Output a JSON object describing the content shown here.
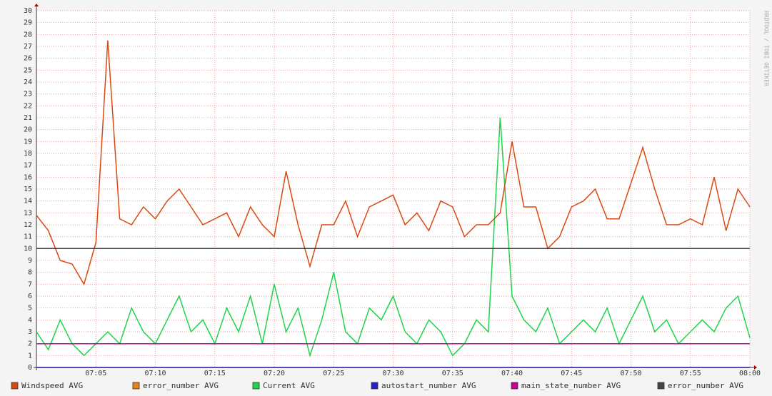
{
  "chart_data": {
    "type": "line",
    "watermark": "RRDTOOL / TOBI OETIKER",
    "x": [
      "07:00",
      "07:01",
      "07:02",
      "07:03",
      "07:04",
      "07:05",
      "07:06",
      "07:07",
      "07:08",
      "07:09",
      "07:10",
      "07:11",
      "07:12",
      "07:13",
      "07:14",
      "07:15",
      "07:16",
      "07:17",
      "07:18",
      "07:19",
      "07:20",
      "07:21",
      "07:22",
      "07:23",
      "07:24",
      "07:25",
      "07:26",
      "07:27",
      "07:28",
      "07:29",
      "07:30",
      "07:31",
      "07:32",
      "07:33",
      "07:34",
      "07:35",
      "07:36",
      "07:37",
      "07:38",
      "07:39",
      "07:40",
      "07:41",
      "07:42",
      "07:43",
      "07:44",
      "07:45",
      "07:46",
      "07:47",
      "07:48",
      "07:49",
      "07:50",
      "07:51",
      "07:52",
      "07:53",
      "07:54",
      "07:55",
      "07:56",
      "07:57",
      "07:58",
      "07:59",
      "08:00"
    ],
    "xlim": [
      "07:00",
      "08:00"
    ],
    "xticks": [
      "07:05",
      "07:10",
      "07:15",
      "07:20",
      "07:25",
      "07:30",
      "07:35",
      "07:40",
      "07:45",
      "07:50",
      "07:55",
      "08:00"
    ],
    "ylim": [
      0,
      30
    ],
    "yticks": [
      0,
      1,
      2,
      3,
      4,
      5,
      6,
      7,
      8,
      9,
      10,
      11,
      12,
      13,
      14,
      15,
      16,
      17,
      18,
      19,
      20,
      21,
      22,
      23,
      24,
      25,
      26,
      27,
      28,
      29,
      30
    ],
    "grid": true,
    "series": [
      {
        "name": "Windspeed AVG",
        "color": "#d84a12",
        "values": [
          12.8,
          11.5,
          9,
          8.7,
          7,
          10.5,
          27.5,
          12.5,
          12,
          13.5,
          12.5,
          14,
          15,
          13.5,
          12,
          12.5,
          13,
          11,
          13.5,
          12,
          11,
          16.5,
          12,
          8.5,
          12,
          12,
          14,
          11,
          13.5,
          14,
          14.5,
          12,
          13,
          11.5,
          14,
          13.5,
          11,
          12,
          12,
          13,
          19,
          13.5,
          13.5,
          10,
          11,
          13.5,
          14,
          15,
          12.5,
          12.5,
          15.5,
          18.5,
          15,
          12,
          12,
          12.5,
          12,
          16,
          11.5,
          15,
          13.5
        ]
      },
      {
        "name": "error_number AVG",
        "color": "#e8801a",
        "values": [
          0,
          0,
          0,
          0,
          0,
          0,
          0,
          0,
          0,
          0,
          0,
          0,
          0,
          0,
          0,
          0,
          0,
          0,
          0,
          0,
          0,
          0,
          0,
          0,
          0,
          0,
          0,
          0,
          0,
          0,
          0,
          0,
          0,
          0,
          0,
          0,
          0,
          0,
          0,
          0,
          0,
          0,
          0,
          0,
          0,
          0,
          0,
          0,
          0,
          0,
          0,
          0,
          0,
          0,
          0,
          0,
          0,
          0,
          0,
          0,
          0
        ]
      },
      {
        "name": "Current AVG",
        "color": "#1ed44a",
        "values": [
          3,
          1.5,
          4,
          2,
          1,
          2,
          3,
          2,
          5,
          3,
          2,
          4,
          6,
          3,
          4,
          2,
          5,
          3,
          6,
          2,
          7,
          3,
          5,
          1,
          4,
          8,
          3,
          2,
          5,
          4,
          6,
          3,
          2,
          4,
          3,
          1,
          2,
          4,
          3,
          21,
          6,
          4,
          3,
          5,
          2,
          3,
          4,
          3,
          5,
          2,
          4,
          6,
          3,
          4,
          2,
          3,
          4,
          3,
          5,
          6,
          2.5
        ]
      },
      {
        "name": "autostart_number AVG",
        "color": "#2222cc",
        "values": [
          0,
          0,
          0,
          0,
          0,
          0,
          0,
          0,
          0,
          0,
          0,
          0,
          0,
          0,
          0,
          0,
          0,
          0,
          0,
          0,
          0,
          0,
          0,
          0,
          0,
          0,
          0,
          0,
          0,
          0,
          0,
          0,
          0,
          0,
          0,
          0,
          0,
          0,
          0,
          0,
          0,
          0,
          0,
          0,
          0,
          0,
          0,
          0,
          0,
          0,
          0,
          0,
          0,
          0,
          0,
          0,
          0,
          0,
          0,
          0,
          0
        ]
      },
      {
        "name": "main_state_number AVG",
        "color": "#cc0099",
        "values": [
          2,
          2,
          2,
          2,
          2,
          2,
          2,
          2,
          2,
          2,
          2,
          2,
          2,
          2,
          2,
          2,
          2,
          2,
          2,
          2,
          2,
          2,
          2,
          2,
          2,
          2,
          2,
          2,
          2,
          2,
          2,
          2,
          2,
          2,
          2,
          2,
          2,
          2,
          2,
          2,
          2,
          2,
          2,
          2,
          2,
          2,
          2,
          2,
          2,
          2,
          2,
          2,
          2,
          2,
          2,
          2,
          2,
          2,
          2,
          2,
          2
        ]
      },
      {
        "name": "error_number AVG",
        "color": "#444444",
        "values": [
          10,
          10,
          10,
          10,
          10,
          10,
          10,
          10,
          10,
          10,
          10,
          10,
          10,
          10,
          10,
          10,
          10,
          10,
          10,
          10,
          10,
          10,
          10,
          10,
          10,
          10,
          10,
          10,
          10,
          10,
          10,
          10,
          10,
          10,
          10,
          10,
          10,
          10,
          10,
          10,
          10,
          10,
          10,
          10,
          10,
          10,
          10,
          10,
          10,
          10,
          10,
          10,
          10,
          10,
          10,
          10,
          10,
          10,
          10,
          10,
          10
        ]
      }
    ]
  }
}
